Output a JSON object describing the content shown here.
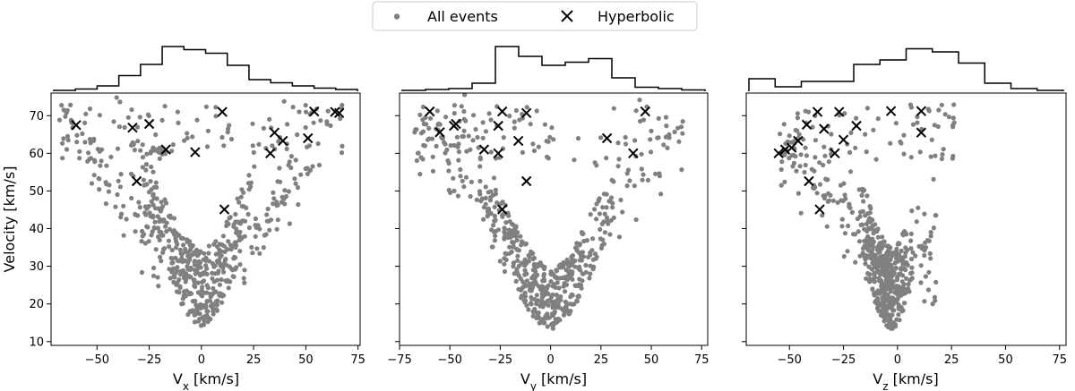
{
  "legend": {
    "entries": [
      {
        "label": "All events",
        "marker": "dot",
        "color": "#808080"
      },
      {
        "label": "Hyperbolic",
        "marker": "x",
        "color": "#000000"
      }
    ]
  },
  "chart_data": [
    {
      "type": "scatter",
      "xlabel_base": "V",
      "xlabel_sub": "x",
      "xlabel_unit": " [km/s]",
      "ylabel": "Velocity [km/s]",
      "xlim": [
        -72,
        76
      ],
      "ylim": [
        9,
        76
      ],
      "xticks": [
        -50,
        -25,
        0,
        25,
        50,
        75
      ],
      "yticks": [
        10,
        20,
        30,
        40,
        50,
        60,
        70
      ],
      "show_ytick_labels": true,
      "histogram": [
        0.02,
        0.05,
        0.12,
        0.35,
        0.6,
        1.0,
        0.93,
        0.85,
        0.58,
        0.26,
        0.19,
        0.12,
        0.07,
        0.04
      ],
      "hyperbolic": {
        "x": [
          -60,
          -33,
          -25,
          -17,
          -3,
          10,
          33,
          35,
          39,
          51,
          54,
          64,
          66,
          -31,
          11
        ],
        "y": [
          67.5,
          66.8,
          67.8,
          61,
          60.3,
          71,
          60,
          65.5,
          63.3,
          64,
          71.1,
          71,
          70.7,
          52.6,
          45.1
        ]
      },
      "all_events_color": "#808080"
    },
    {
      "type": "scatter",
      "xlabel_base": "V",
      "xlabel_sub": "y",
      "xlabel_unit": " [km/s]",
      "ylabel": "",
      "xlim": [
        -75,
        78
      ],
      "ylim": [
        9,
        76
      ],
      "xticks": [
        -75,
        -50,
        -25,
        0,
        25,
        50,
        75
      ],
      "yticks": [
        10,
        20,
        30,
        40,
        50,
        60,
        70
      ],
      "show_ytick_labels": false,
      "histogram": [
        0.02,
        0.04,
        0.06,
        0.18,
        1.0,
        0.78,
        0.58,
        0.65,
        0.73,
        0.3,
        0.09,
        0.06,
        0.03
      ],
      "hyperbolic": {
        "x": [
          -60,
          -55,
          -48,
          -47,
          -33,
          -26,
          -26,
          -24,
          -16,
          -12,
          -12,
          28,
          41,
          47,
          -24
        ],
        "y": [
          71.1,
          65.6,
          67.3,
          67.8,
          61,
          67.3,
          60,
          71.1,
          63.3,
          52.6,
          70.7,
          64,
          60,
          71.1,
          45.1
        ]
      },
      "all_events_color": "#808080"
    },
    {
      "type": "scatter",
      "xlabel_base": "V",
      "xlabel_sub": "z",
      "xlabel_unit": " [km/s]",
      "ylabel": "",
      "xlim": [
        -70,
        78
      ],
      "ylim": [
        9,
        76
      ],
      "xticks": [
        -50,
        -25,
        0,
        25,
        50,
        75
      ],
      "yticks": [
        10,
        20,
        30,
        40,
        50,
        60,
        70
      ],
      "show_ytick_labels": false,
      "histogram": [
        0.28,
        0.1,
        0.22,
        0.22,
        0.6,
        0.7,
        0.95,
        0.88,
        0.63,
        0.18,
        0.06,
        0.02
      ],
      "hyperbolic": {
        "x": [
          -55,
          -52,
          -49,
          -46,
          -42,
          -37,
          -34,
          -29,
          -27,
          -25,
          -19,
          -3,
          11,
          11,
          -41,
          -36
        ],
        "y": [
          60,
          61,
          61.5,
          63.3,
          67.6,
          71,
          66.5,
          60,
          71,
          63.6,
          67.3,
          71.2,
          71.2,
          65.5,
          52.6,
          45.1
        ]
      },
      "all_events_color": "#808080"
    }
  ]
}
